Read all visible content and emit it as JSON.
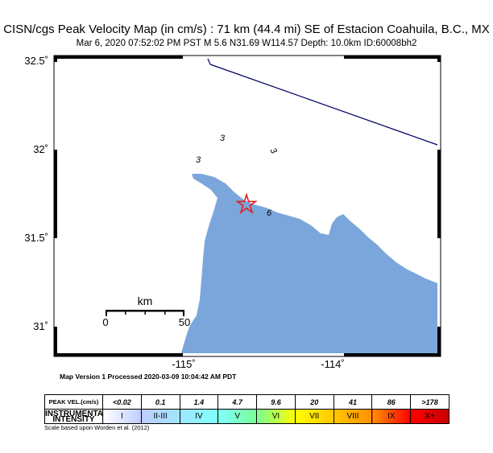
{
  "header": {
    "title": "CISN/cgs Peak Velocity Map (in cm/s) : 71 km (44.4 mi) SE of Estacion Coahuila, B.C., MX",
    "subtitle": "Mar  6, 2020 07:52:02 PM PST   M 5.6   N31.69 W114.57   Depth: 10.0km   ID:60008bh2"
  },
  "map": {
    "lat_labels": [
      "32.5˚",
      "32˚",
      "31.5˚",
      "31˚"
    ],
    "lon_labels": [
      "-115˚",
      "-114˚"
    ],
    "contour_labels": [
      "3",
      "3",
      "3",
      "6"
    ],
    "scale_bar": {
      "unit": "km",
      "min": "0",
      "max": "50"
    },
    "colors": {
      "water": "#7aa6dc",
      "border": "#000066",
      "epicenter": "#e02020"
    },
    "icons": {
      "epicenter": "star-icon"
    }
  },
  "footer": {
    "version_text": "Map Version 1 Processed 2020-03-09 10:04:42 AM PDT",
    "caption": "Scale based upon Worden et al. (2012)"
  },
  "legend": {
    "row1_header": "PEAK VEL.(cm/s)",
    "row2_header_line1": "INSTRUMENTAL",
    "row2_header_line2": "INTENSITY",
    "values": [
      "<0.02",
      "0.1",
      "1.4",
      "4.7",
      "9.6",
      "20",
      "41",
      "86",
      ">178"
    ],
    "intensities": [
      "I",
      "II-III",
      "IV",
      "V",
      "VI",
      "VII",
      "VIII",
      "IX",
      "X+"
    ],
    "colors": [
      "#ffffff",
      "#bfccff",
      "#a0e6ff",
      "#80ffff",
      "#7aff93",
      "#ffff00",
      "#ffc800",
      "#ff9100",
      "#ff0000",
      "#c80000"
    ]
  }
}
